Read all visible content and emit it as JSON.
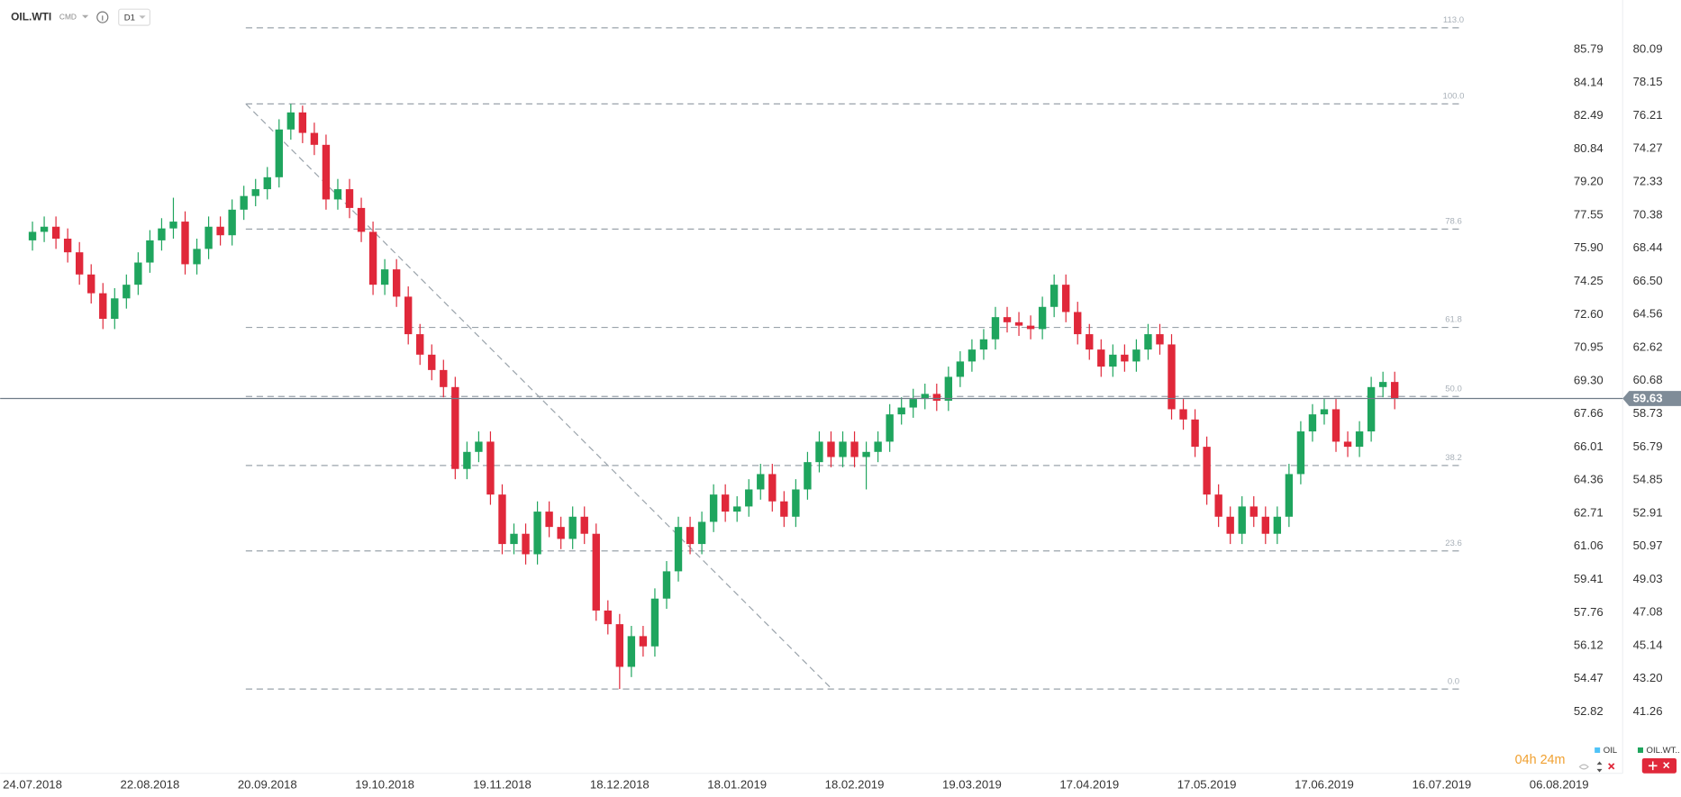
{
  "header": {
    "symbol": "OIL.WTI",
    "market": "CMD",
    "timeframe": "D1"
  },
  "timer": "04h 24m",
  "chart_data": {
    "type": "candlestick",
    "categories": [
      "24.07.2018",
      null,
      null,
      null,
      null,
      null,
      null,
      null,
      null,
      null,
      "22.08.2018",
      null,
      null,
      null,
      null,
      null,
      null,
      null,
      null,
      null,
      "20.09.2018",
      null,
      null,
      null,
      null,
      null,
      null,
      null,
      null,
      null,
      "19.10.2018",
      null,
      null,
      null,
      null,
      null,
      null,
      null,
      null,
      null,
      "19.11.2018",
      null,
      null,
      null,
      null,
      null,
      null,
      null,
      null,
      null,
      "18.12.2018",
      null,
      null,
      null,
      null,
      null,
      null,
      null,
      null,
      null,
      "18.01.2019",
      null,
      null,
      null,
      null,
      null,
      null,
      null,
      null,
      null,
      "18.02.2019",
      null,
      null,
      null,
      null,
      null,
      null,
      null,
      null,
      null,
      "19.03.2019",
      null,
      null,
      null,
      null,
      null,
      null,
      null,
      null,
      null,
      "17.04.2019",
      null,
      null,
      null,
      null,
      null,
      null,
      null,
      null,
      null,
      "17.05.2019",
      null,
      null,
      null,
      null,
      null,
      null,
      null,
      null,
      null,
      "17.06.2019",
      null,
      null,
      null,
      null,
      null,
      null,
      null,
      null,
      null,
      "16.07.2019",
      null,
      null,
      null,
      null,
      null,
      null,
      null,
      null,
      null,
      "06.08.2019"
    ],
    "open": [
      68.9,
      69.4,
      69.7,
      69.0,
      68.2,
      66.9,
      65.8,
      64.3,
      65.5,
      66.3,
      67.6,
      68.9,
      69.6,
      70.0,
      67.5,
      68.4,
      69.7,
      69.2,
      70.7,
      71.5,
      71.9,
      72.6,
      75.4,
      76.4,
      75.2,
      74.5,
      71.3,
      71.9,
      70.8,
      69.4,
      66.3,
      67.2,
      65.6,
      63.4,
      62.2,
      61.3,
      60.3,
      55.5,
      56.5,
      57.1,
      54.0,
      51.1,
      51.7,
      50.5,
      53.0,
      52.1,
      51.4,
      52.7,
      51.7,
      47.2,
      46.4,
      43.9,
      45.7,
      45.1,
      47.9,
      49.5,
      52.1,
      51.1,
      52.4,
      54.0,
      53.0,
      53.3,
      54.3,
      55.2,
      53.6,
      52.7,
      54.3,
      55.9,
      57.1,
      56.2,
      57.1,
      56.2,
      56.5,
      57.1,
      58.7,
      59.1,
      59.6,
      59.9,
      59.5,
      60.9,
      61.8,
      62.5,
      63.1,
      64.4,
      64.1,
      63.9,
      63.7,
      65.0,
      66.3,
      64.7,
      63.4,
      62.5,
      61.5,
      62.2,
      61.8,
      62.5,
      63.4,
      62.8,
      59.0,
      58.4,
      56.8,
      54.0,
      52.7,
      51.7,
      53.3,
      52.7,
      51.7,
      52.7,
      55.2,
      57.7,
      58.7,
      59.0,
      57.1,
      56.8,
      57.7,
      60.3,
      60.6,
      null,
      null,
      null,
      null,
      null,
      null,
      null,
      null,
      null,
      null,
      null,
      null,
      null,
      null
    ],
    "high": [
      70.0,
      70.3,
      70.3,
      69.6,
      68.8,
      67.5,
      66.4,
      66.1,
      66.9,
      68.2,
      69.5,
      70.2,
      71.4,
      70.6,
      69.0,
      70.3,
      70.3,
      71.3,
      72.1,
      72.5,
      73.2,
      76.0,
      76.9,
      76.8,
      75.8,
      75.1,
      72.5,
      72.5,
      71.4,
      70.0,
      67.8,
      67.8,
      66.2,
      64.0,
      62.8,
      61.9,
      60.9,
      57.1,
      57.7,
      57.7,
      54.6,
      52.3,
      52.3,
      53.6,
      53.6,
      52.7,
      53.3,
      53.3,
      52.3,
      47.8,
      47.0,
      46.3,
      46.3,
      48.5,
      50.1,
      52.7,
      52.7,
      53.0,
      54.6,
      54.6,
      53.9,
      54.9,
      55.8,
      55.8,
      54.2,
      54.9,
      56.5,
      57.7,
      57.7,
      57.7,
      57.7,
      57.1,
      57.7,
      59.3,
      59.7,
      60.2,
      60.5,
      60.5,
      61.5,
      62.4,
      63.1,
      63.7,
      65.0,
      65.0,
      64.7,
      64.5,
      65.6,
      66.9,
      66.9,
      65.3,
      64.0,
      63.1,
      62.8,
      62.8,
      63.1,
      64.0,
      64.0,
      63.4,
      59.6,
      59.0,
      57.4,
      54.6,
      53.3,
      53.9,
      53.9,
      53.3,
      53.3,
      55.8,
      58.3,
      59.3,
      59.6,
      59.6,
      57.7,
      58.3,
      60.9,
      61.2,
      61.2,
      null,
      null,
      null,
      null,
      null,
      null,
      null,
      null,
      null,
      null,
      null,
      null,
      null,
      null
    ],
    "low": [
      68.3,
      68.8,
      68.4,
      67.6,
      66.3,
      65.2,
      63.7,
      63.7,
      64.9,
      65.7,
      67.0,
      68.3,
      69.0,
      66.9,
      66.9,
      67.8,
      68.6,
      68.6,
      70.1,
      70.9,
      71.3,
      72.0,
      74.8,
      74.6,
      73.9,
      70.7,
      70.7,
      70.2,
      68.8,
      65.7,
      65.7,
      65.0,
      62.8,
      61.6,
      60.7,
      59.7,
      54.9,
      54.9,
      55.9,
      53.4,
      50.5,
      50.5,
      49.9,
      49.9,
      51.5,
      50.8,
      50.8,
      51.1,
      46.6,
      45.8,
      42.6,
      43.3,
      44.5,
      44.5,
      47.3,
      48.9,
      50.5,
      50.5,
      51.8,
      52.4,
      52.4,
      52.7,
      53.7,
      53.0,
      52.1,
      52.1,
      53.7,
      55.3,
      55.6,
      55.6,
      55.6,
      54.3,
      55.9,
      56.5,
      58.1,
      58.5,
      59.0,
      58.9,
      58.9,
      60.3,
      61.2,
      61.9,
      62.5,
      63.5,
      63.3,
      63.1,
      63.1,
      64.4,
      64.1,
      62.8,
      61.9,
      60.9,
      60.9,
      61.2,
      61.2,
      61.9,
      62.2,
      58.4,
      57.8,
      56.2,
      53.4,
      52.1,
      51.1,
      51.1,
      52.1,
      51.1,
      51.1,
      52.1,
      54.6,
      57.1,
      58.1,
      56.5,
      56.2,
      56.2,
      57.1,
      59.7,
      59.0,
      null,
      null,
      null,
      null,
      null,
      null,
      null,
      null,
      null,
      null,
      null,
      null,
      null,
      null
    ],
    "close": [
      69.4,
      69.7,
      69.0,
      68.2,
      66.9,
      65.8,
      64.3,
      65.5,
      66.3,
      67.6,
      68.9,
      69.6,
      70.0,
      67.5,
      68.4,
      69.7,
      69.2,
      70.7,
      71.5,
      71.9,
      72.6,
      75.4,
      76.4,
      75.2,
      74.5,
      71.3,
      71.9,
      70.8,
      69.4,
      66.3,
      67.2,
      65.6,
      63.4,
      62.2,
      61.3,
      60.3,
      55.5,
      56.5,
      57.1,
      54.0,
      51.1,
      51.7,
      50.5,
      53.0,
      52.1,
      51.4,
      52.7,
      51.7,
      47.2,
      46.4,
      43.9,
      45.7,
      45.1,
      47.9,
      49.5,
      52.1,
      51.1,
      52.4,
      54.0,
      53.0,
      53.3,
      54.3,
      55.2,
      53.6,
      52.7,
      54.3,
      55.9,
      57.1,
      56.2,
      57.1,
      56.2,
      56.5,
      57.1,
      58.7,
      59.1,
      59.6,
      59.9,
      59.5,
      60.9,
      61.8,
      62.5,
      63.1,
      64.4,
      64.1,
      63.9,
      63.7,
      65.0,
      66.3,
      64.7,
      63.4,
      62.5,
      61.5,
      62.2,
      61.8,
      62.5,
      63.4,
      62.8,
      59.0,
      58.4,
      56.8,
      54.0,
      52.7,
      51.7,
      53.3,
      52.7,
      51.7,
      52.7,
      55.2,
      57.7,
      58.7,
      59.0,
      57.1,
      56.8,
      57.7,
      60.3,
      60.6,
      59.63,
      null,
      null,
      null,
      null,
      null,
      null,
      null,
      null,
      null,
      null,
      null,
      null,
      null,
      null
    ],
    "up_color": "#1fa55e",
    "down_color": "#e0283a",
    "ylim": [
      38.48,
      82.99
    ],
    "yticks": [
      80.09,
      78.15,
      76.21,
      74.27,
      72.33,
      70.38,
      68.44,
      {
        "value": 66.5,
        "label": "66.50"
      },
      64.56,
      62.62,
      60.68,
      58.73,
      56.79,
      54.85,
      52.91,
      50.97,
      49.03,
      47.08,
      45.14,
      {
        "value": 43.2,
        "label": "43.20"
      },
      41.26
    ],
    "y2lim": [
      50.46,
      88.26
    ],
    "y2ticks": [
      85.79,
      84.14,
      82.49,
      80.84,
      {
        "value": 79.2,
        "label": "79.20"
      },
      77.55,
      {
        "value": 75.9,
        "label": "75.90"
      },
      74.25,
      {
        "value": 72.6,
        "label": "72.60"
      },
      70.95,
      {
        "value": 69.3,
        "label": "69.30"
      },
      67.66,
      66.01,
      64.36,
      62.71,
      61.06,
      59.41,
      57.76,
      56.12,
      54.47,
      52.82
    ],
    "last_price": 59.63,
    "fib_levels": [
      {
        "value": 113,
        "label": "113.0"
      },
      {
        "value": 100,
        "label": "100.0"
      },
      78.6,
      61.8,
      {
        "value": 50,
        "label": "50.0"
      },
      38.2,
      23.6,
      {
        "value": 0,
        "label": "0.0"
      }
    ],
    "legend": [
      {
        "name": "OIL",
        "color": "#4fc3f7"
      },
      {
        "name": "OIL.WT..",
        "color": "#1fa55e"
      }
    ],
    "grid": false
  }
}
